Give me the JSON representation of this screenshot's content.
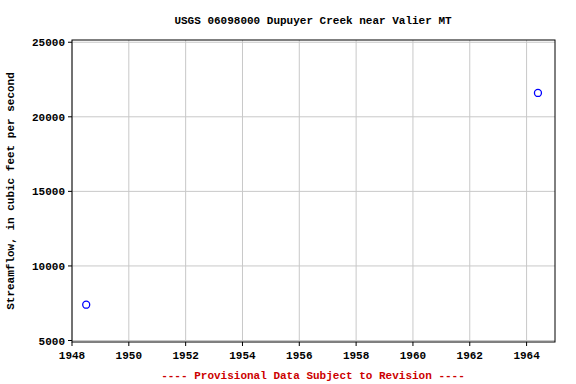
{
  "chart_data": {
    "type": "scatter",
    "title": "USGS 06098000 Dupuyer Creek near Valier MT",
    "y_label": "Streamflow, in cubic feet per second",
    "annotations": [
      "---- Provisional Data Subject to Revision ----"
    ],
    "x": [
      1948.5,
      1964.4
    ],
    "values": [
      7400,
      21600
    ],
    "color": "#0000ff",
    "marker": "circle",
    "xlim": [
      1948,
      1965
    ],
    "xticks": [
      1948,
      1950,
      1952,
      1954,
      1956,
      1958,
      1960,
      1962,
      1964
    ],
    "ylim": [
      4900,
      25150
    ],
    "yticks": [
      5000,
      10000,
      15000,
      20000,
      25000
    ],
    "grid": true
  }
}
